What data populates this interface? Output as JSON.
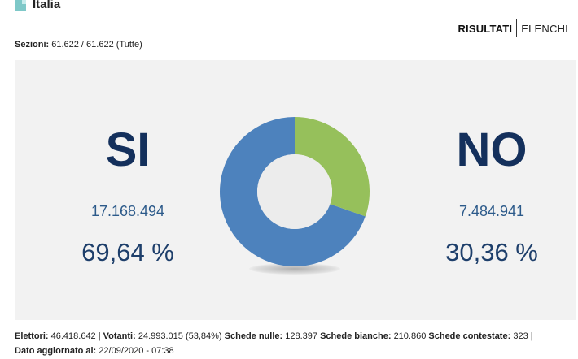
{
  "header": {
    "region": "Italia",
    "nav": {
      "active": "RISULTATI",
      "other": "ELENCHI"
    }
  },
  "sections": {
    "label": "Sezioni:",
    "value": "61.622 / 61.622 (Tutte)"
  },
  "chart_data": {
    "type": "pie",
    "style": "donut",
    "categories": [
      "SI",
      "NO"
    ],
    "values": [
      69.64,
      30.36
    ],
    "colors": [
      "#4d82bd",
      "#96c05b"
    ]
  },
  "results": {
    "si": {
      "label": "SI",
      "votes": "17.168.494",
      "percent": "69,64 %"
    },
    "no": {
      "label": "NO",
      "votes": "7.484.941",
      "percent": "30,36 %"
    }
  },
  "footer": {
    "elettori_label": "Elettori:",
    "elettori_value": "46.418.642 |",
    "votanti_label": "Votanti:",
    "votanti_value": "24.993.015 (53,84%)",
    "nulle_label": "Schede nulle:",
    "nulle_value": "128.397",
    "bianche_label": "Schede bianche:",
    "bianche_value": "210.860",
    "contestate_label": "Schede contestate:",
    "contestate_value": "323 |",
    "aggiornato_label": "Dato aggiornato al:",
    "aggiornato_value": "22/09/2020 - 07:38"
  },
  "colors": {
    "panel_bg": "#f2f2f2",
    "answer": "#14305c",
    "votes": "#2c5a8a",
    "si_slice": "#4d82bd",
    "no_slice": "#96c05b",
    "donut_hole": "#ececec"
  }
}
